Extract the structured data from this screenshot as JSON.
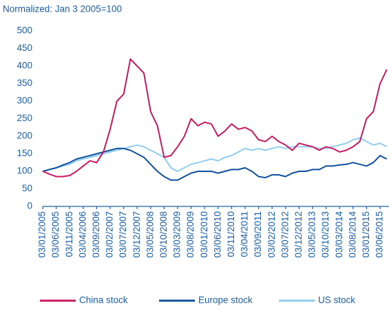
{
  "chart_data": {
    "type": "line",
    "title": "Normalized: Jan 3 2005=100",
    "categories": [
      "03/01/2005",
      null,
      "03/06/2005",
      null,
      "03/11/2005",
      null,
      "03/04/2006",
      null,
      "03/09/2006",
      null,
      "03/02/2007",
      null,
      "03/07/2007",
      null,
      "03/12/2007",
      null,
      "03/05/2008",
      null,
      "03/10/2008",
      null,
      "03/03/2009",
      null,
      "03/08/2009",
      null,
      "03/01/2010",
      null,
      "03/06/2010",
      null,
      "03/11/2010",
      null,
      "03/04/2011",
      null,
      "03/09/2011",
      null,
      "03/02/2012",
      null,
      "03/07/2012",
      null,
      "03/12/2012",
      null,
      "03/05/2013",
      null,
      "03/10/2013",
      null,
      "03/03/2014",
      null,
      "03/08/2014",
      null,
      "03/01/2015",
      null,
      "03/06/2015",
      null
    ],
    "series": [
      {
        "name": "China stock",
        "color": "#c8175e",
        "values": [
          100,
          92,
          85,
          85,
          88,
          100,
          115,
          130,
          125,
          155,
          220,
          300,
          320,
          420,
          400,
          380,
          270,
          230,
          140,
          145,
          170,
          200,
          250,
          230,
          240,
          235,
          200,
          215,
          235,
          220,
          225,
          215,
          190,
          185,
          200,
          185,
          175,
          160,
          180,
          175,
          170,
          160,
          170,
          165,
          155,
          160,
          170,
          185,
          250,
          270,
          350,
          390
        ]
      },
      {
        "name": "Europe stock",
        "color": "#0d4f9c",
        "values": [
          100,
          105,
          110,
          118,
          125,
          135,
          140,
          145,
          150,
          155,
          160,
          165,
          165,
          160,
          150,
          140,
          120,
          100,
          85,
          75,
          75,
          85,
          95,
          100,
          100,
          100,
          95,
          100,
          105,
          105,
          110,
          100,
          85,
          82,
          90,
          90,
          85,
          95,
          100,
          100,
          105,
          105,
          115,
          115,
          118,
          120,
          125,
          120,
          115,
          125,
          145,
          135
        ]
      },
      {
        "name": "US stock",
        "color": "#8fcdef",
        "values": [
          100,
          105,
          110,
          115,
          120,
          130,
          135,
          140,
          145,
          150,
          155,
          160,
          165,
          170,
          175,
          170,
          160,
          150,
          140,
          110,
          100,
          110,
          120,
          125,
          130,
          135,
          130,
          140,
          145,
          155,
          165,
          160,
          165,
          160,
          165,
          170,
          165,
          170,
          170,
          170,
          170,
          165,
          165,
          170,
          175,
          180,
          190,
          195,
          185,
          175,
          180,
          170
        ]
      }
    ],
    "ylim": [
      0,
      500
    ],
    "yticks": [
      0,
      50,
      100,
      150,
      200,
      250,
      300,
      350,
      400,
      450,
      500
    ],
    "grid": false
  }
}
